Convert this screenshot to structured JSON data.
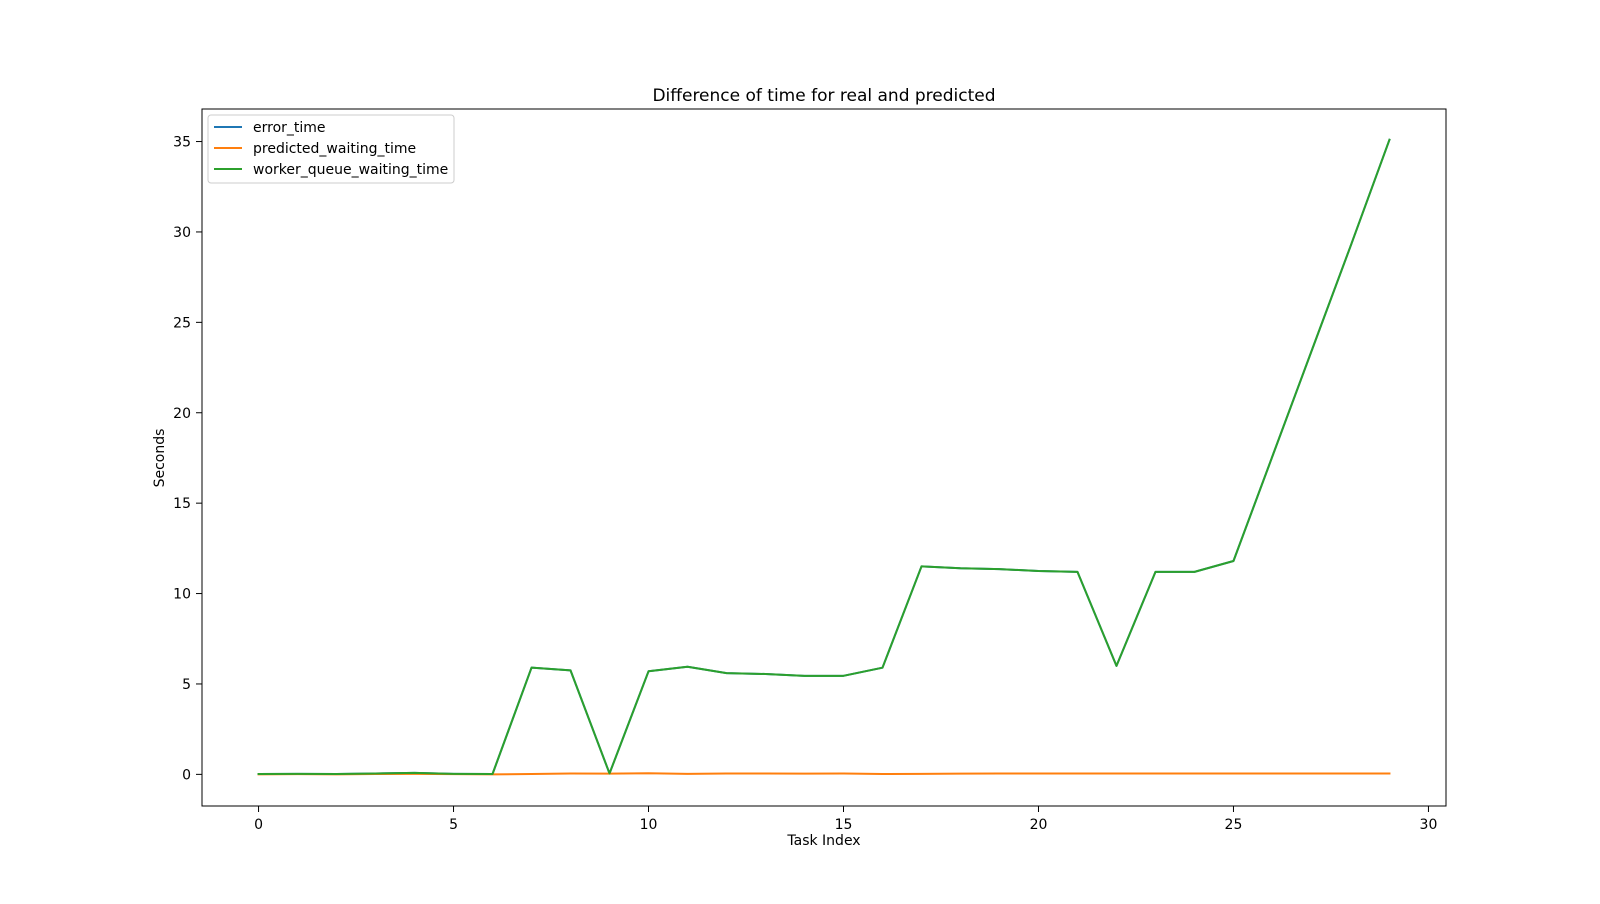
{
  "chart_data": {
    "type": "line",
    "title": "Difference of time for real and predicted",
    "xlabel": "Task Index",
    "ylabel": "Seconds",
    "xlim": [
      -1.45,
      30.45
    ],
    "ylim": [
      -1.75,
      36.8
    ],
    "xticks": [
      0,
      5,
      10,
      15,
      20,
      25,
      30
    ],
    "yticks": [
      0,
      5,
      10,
      15,
      20,
      25,
      30,
      35
    ],
    "grid": false,
    "legend_position": "upper left",
    "x": [
      0,
      1,
      2,
      3,
      4,
      5,
      6,
      7,
      8,
      9,
      10,
      11,
      12,
      13,
      14,
      15,
      16,
      17,
      18,
      19,
      20,
      21,
      22,
      23,
      24,
      25,
      26,
      27,
      28,
      29
    ],
    "series": [
      {
        "name": "error_time",
        "color": "#1f77b4",
        "values": [
          0.02,
          0.03,
          0.02,
          0.05,
          0.08,
          0.03,
          0.02,
          5.9,
          5.75,
          0.05,
          5.7,
          5.95,
          5.6,
          5.55,
          5.45,
          5.45,
          5.9,
          11.5,
          11.4,
          11.35,
          11.25,
          11.2,
          6.0,
          11.2,
          11.2,
          11.8,
          17.6,
          23.4,
          29.2,
          35.1
        ]
      },
      {
        "name": "predicted_waiting_time",
        "color": "#ff7f0e",
        "values": [
          0.0,
          0.01,
          0.0,
          0.02,
          0.03,
          0.01,
          0.0,
          0.02,
          0.05,
          0.04,
          0.06,
          0.03,
          0.05,
          0.05,
          0.04,
          0.05,
          0.02,
          0.03,
          0.04,
          0.05,
          0.05,
          0.05,
          0.05,
          0.05,
          0.05,
          0.05,
          0.05,
          0.05,
          0.05,
          0.05
        ]
      },
      {
        "name": "worker_queue_waiting_time",
        "color": "#2ca02c",
        "values": [
          0.02,
          0.03,
          0.02,
          0.05,
          0.08,
          0.03,
          0.02,
          5.9,
          5.75,
          0.05,
          5.7,
          5.95,
          5.6,
          5.55,
          5.45,
          5.45,
          5.9,
          11.5,
          11.4,
          11.35,
          11.25,
          11.2,
          6.0,
          11.2,
          11.2,
          11.8,
          17.6,
          23.4,
          29.2,
          35.1
        ]
      }
    ]
  }
}
